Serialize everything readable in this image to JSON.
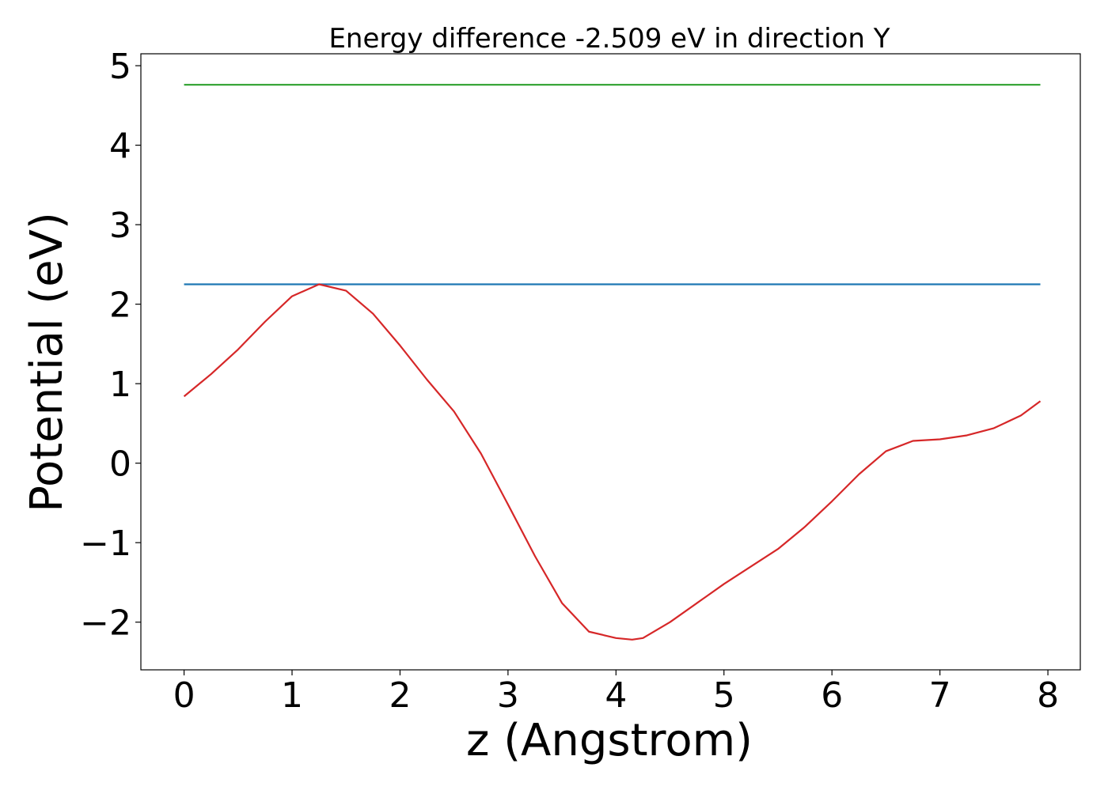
{
  "chart_data": {
    "type": "line",
    "title": "Energy difference -2.509 eV in direction Y",
    "xlabel": "z (Angstrom)",
    "ylabel": "Potential (eV)",
    "xlim": [
      -0.4,
      8.3
    ],
    "ylim": [
      -2.6,
      5.15
    ],
    "x_ticks": [
      "0",
      "1",
      "2",
      "3",
      "4",
      "5",
      "6",
      "7",
      "8"
    ],
    "y_ticks": [
      "−2",
      "−1",
      "0",
      "1",
      "2",
      "3",
      "4",
      "5"
    ],
    "grid": false,
    "legend": "none",
    "series": [
      {
        "color": "#2ca02c",
        "x": [
          0.0,
          7.93
        ],
        "y": [
          4.76,
          4.76
        ]
      },
      {
        "color": "#1f77b4",
        "x": [
          0.0,
          7.93
        ],
        "y": [
          2.25,
          2.25
        ]
      },
      {
        "color": "#d62728",
        "x": [
          0.0,
          0.25,
          0.5,
          0.75,
          1.0,
          1.25,
          1.5,
          1.75,
          2.0,
          2.25,
          2.5,
          2.75,
          3.0,
          3.25,
          3.5,
          3.75,
          4.0,
          4.15,
          4.25,
          4.5,
          4.75,
          5.0,
          5.25,
          5.5,
          5.75,
          6.0,
          6.25,
          6.5,
          6.75,
          7.0,
          7.25,
          7.5,
          7.75,
          7.93
        ],
        "y": [
          0.84,
          1.12,
          1.43,
          1.78,
          2.1,
          2.25,
          2.17,
          1.88,
          1.48,
          1.05,
          0.65,
          0.12,
          -0.52,
          -1.17,
          -1.76,
          -2.12,
          -2.2,
          -2.22,
          -2.2,
          -2.0,
          -1.76,
          -1.52,
          -1.3,
          -1.08,
          -0.8,
          -0.48,
          -0.14,
          0.15,
          0.28,
          0.3,
          0.35,
          0.44,
          0.6,
          0.78
        ]
      }
    ]
  }
}
